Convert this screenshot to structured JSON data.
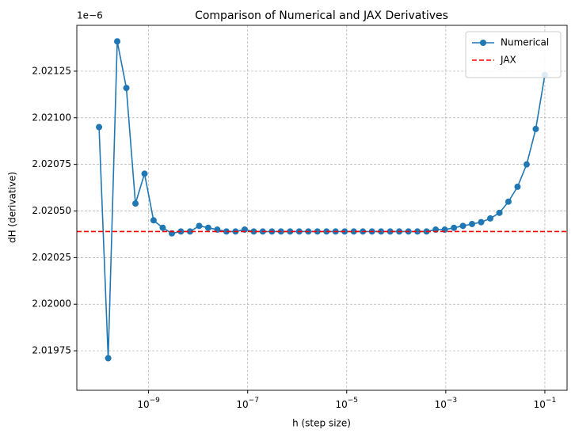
{
  "chart_data": {
    "type": "line",
    "title": "Comparison of Numerical and JAX Derivatives",
    "xlabel": "h (step size)",
    "ylabel": "dH (derivative)",
    "y_offset_label": "1e−6",
    "x": [
      1e-10,
      1.53e-10,
      2.33e-10,
      3.56e-10,
      5.43e-10,
      8.29e-10,
      1.26e-09,
      1.93e-09,
      2.95e-09,
      4.5e-09,
      6.87e-09,
      1.05e-08,
      1.6e-08,
      2.44e-08,
      3.73e-08,
      5.69e-08,
      8.69e-08,
      1.33e-07,
      2.02e-07,
      3.09e-07,
      4.71e-07,
      7.2e-07,
      1.1e-06,
      1.68e-06,
      2.56e-06,
      3.91e-06,
      5.96e-06,
      9.1e-06,
      1.39e-05,
      2.12e-05,
      3.24e-05,
      4.94e-05,
      7.54e-05,
      0.000115,
      0.000176,
      0.000268,
      0.000409,
      0.000625,
      0.000954,
      0.00146,
      0.00222,
      0.00339,
      0.00518,
      0.00791,
      0.0121,
      0.0184,
      0.0281,
      0.0429,
      0.0655,
      0.1
    ],
    "series": [
      {
        "name": "Numerical",
        "color": "#1f77b4",
        "marker": "o",
        "values": [
          2.02095,
          2.01971,
          2.02141,
          2.02116,
          2.02054,
          2.0207,
          2.02045,
          2.02041,
          2.02038,
          2.02039,
          2.02039,
          2.02042,
          2.02041,
          2.0204,
          2.02039,
          2.02039,
          2.0204,
          2.02039,
          2.02039,
          2.02039,
          2.02039,
          2.02039,
          2.02039,
          2.02039,
          2.02039,
          2.02039,
          2.02039,
          2.02039,
          2.02039,
          2.02039,
          2.02039,
          2.02039,
          2.02039,
          2.02039,
          2.02039,
          2.02039,
          2.02039,
          2.0204,
          2.0204,
          2.02041,
          2.02042,
          2.02043,
          2.02044,
          2.02046,
          2.02049,
          2.02055,
          2.02063,
          2.02075,
          2.02094,
          2.02123
        ]
      },
      {
        "name": "JAX",
        "color": "#ff0000",
        "style": "dashed",
        "hline": 2.02039
      }
    ],
    "xscale": "log",
    "xlim": [
      3.56e-11,
      0.281
    ],
    "xticks": [
      {
        "value": 1e-09,
        "label": "10−9"
      },
      {
        "value": 1e-07,
        "label": "10−7"
      },
      {
        "value": 1e-05,
        "label": "10−5"
      },
      {
        "value": 0.001,
        "label": "10−3"
      },
      {
        "value": 0.1,
        "label": "10−1"
      }
    ],
    "ylim": [
      2.019538,
      2.021496
    ],
    "yticks": [
      2.01975,
      {
        "value": 2.02,
        "label": "2.02000"
      },
      2.02025,
      {
        "value": 2.0205,
        "label": "2.02050"
      },
      2.02075,
      {
        "value": 2.021,
        "label": "2.02100"
      },
      2.02125
    ],
    "grid": true,
    "legend": "upper right"
  }
}
